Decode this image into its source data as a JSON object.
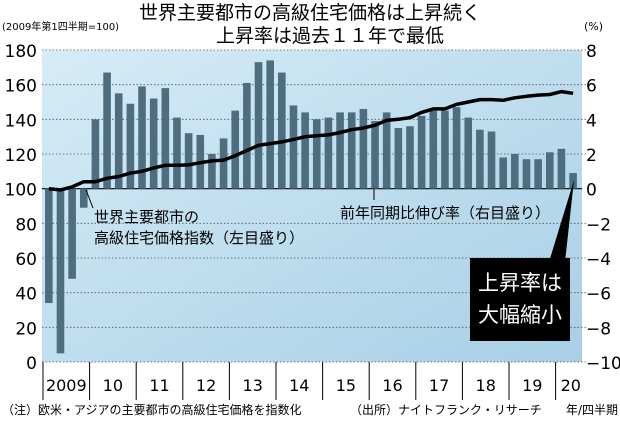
{
  "chart_data": {
    "type": "bar+line",
    "title_lines": [
      "世界主要都市の高級住宅価格は上昇続く",
      "上昇率は過去１１年で最低"
    ],
    "left_axis": {
      "unit_label": "(2009年第1四半期=100)",
      "range": [
        0,
        180
      ],
      "ticks": [
        0,
        20,
        40,
        60,
        80,
        100,
        120,
        140,
        160,
        180
      ]
    },
    "right_axis": {
      "unit_label": "(%)",
      "range": [
        -10,
        8
      ],
      "ticks": [
        -10,
        -8,
        -6,
        -4,
        -2,
        0,
        2,
        4,
        6,
        8
      ]
    },
    "x_axis": {
      "year_labels": [
        "2009",
        "10",
        "11",
        "12",
        "13",
        "14",
        "15",
        "16",
        "17",
        "18",
        "19",
        "20"
      ],
      "unit_label": "年/四半期",
      "start": "2009Q1",
      "end": "2020Q2"
    },
    "grid": true,
    "series": [
      {
        "name": "前年同期比伸び率（右目盛り）",
        "kind": "bar",
        "axis": "right",
        "values": [
          -6.6,
          -9.5,
          -5.2,
          -1.1,
          4.0,
          6.7,
          5.5,
          4.9,
          5.9,
          5.2,
          5.8,
          4.1,
          3.2,
          3.1,
          2.0,
          2.9,
          4.5,
          6.1,
          7.3,
          7.4,
          6.7,
          4.8,
          4.4,
          4.0,
          4.1,
          4.4,
          4.4,
          4.6,
          3.9,
          4.4,
          3.5,
          3.6,
          4.2,
          4.5,
          4.5,
          4.7,
          4.1,
          3.4,
          3.3,
          1.8,
          2.0,
          1.7,
          1.7,
          2.1,
          2.3,
          0.9
        ]
      },
      {
        "name": "世界主要都市の高級住宅価格指数（左目盛り）",
        "kind": "line",
        "axis": "left",
        "values": [
          100,
          99.3,
          101,
          104,
          104,
          106,
          107,
          109,
          110,
          112,
          113.5,
          113.5,
          113.7,
          115,
          116,
          116.5,
          119,
          122,
          125,
          126,
          127,
          128.4,
          130,
          130.5,
          131,
          132.4,
          134,
          135,
          136.6,
          139.4,
          140,
          141,
          144,
          146,
          146,
          148.6,
          150,
          151.4,
          151.4,
          151,
          152.4,
          153.3,
          154,
          154.3,
          156,
          155
        ]
      }
    ],
    "annotations": {
      "line_label": [
        "世界主要都市の",
        "高級住宅価格指数（左目盛り）"
      ],
      "bar_label": "前年同期比伸び率（右目盛り）",
      "callout": [
        "上昇率は",
        "大幅縮小"
      ]
    },
    "note": "（注）欧米・アジアの主要都市の高級住宅価格を指数化",
    "source": "（出所）ナイトフランク・リサーチ",
    "colors": {
      "bar": "#4e6e80",
      "line": "#000000",
      "bg_top": "#d6ecf7",
      "bg_bottom": "#a8cfe6",
      "callout_bg": "#000000",
      "callout_text": "#ffffff"
    }
  }
}
